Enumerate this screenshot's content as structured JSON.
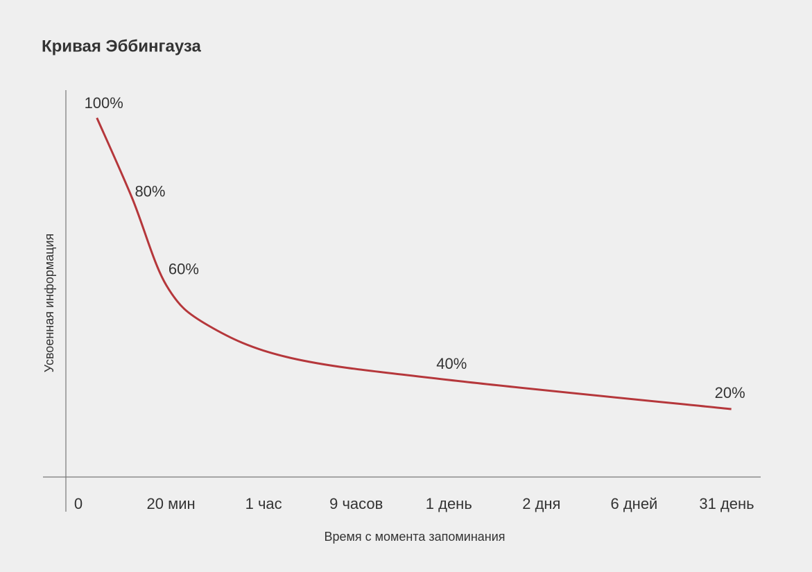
{
  "chart_data": {
    "type": "line",
    "title": "Кривая Эббингауза",
    "x_label": "Время с момента запоминания",
    "y_label": "Усвоенная информация",
    "categories": [
      "0",
      "20 мин",
      "1 час",
      "9 часов",
      "1 день",
      "2 дня",
      "6 дней",
      "31 день"
    ],
    "xlim": [
      0,
      7
    ],
    "ylim": [
      0,
      100
    ],
    "series": [
      {
        "color": "#b5373b",
        "x": [
          0.2,
          0.58,
          0.95,
          1.4,
          2.3,
          4.0,
          7.05
        ],
        "values": [
          100,
          78,
          54,
          43,
          34,
          28,
          20
        ]
      }
    ],
    "annotations": [
      "100%",
      "80%",
      "60%",
      "40%",
      "20%"
    ]
  }
}
